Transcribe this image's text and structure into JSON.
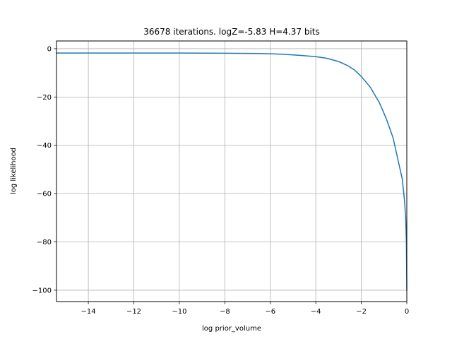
{
  "chart_data": {
    "type": "line",
    "title": "36678 iterations. logZ=-5.83 H=4.37 bits",
    "xlabel": "log prior_volume",
    "ylabel": "log likelihood",
    "xlim": [
      -15.4,
      0
    ],
    "ylim": [
      -104.7,
      3.2
    ],
    "grid": true,
    "xticks": [
      -14,
      -12,
      -10,
      -8,
      -6,
      -4,
      -2,
      0
    ],
    "xtick_labels": [
      "−14",
      "−12",
      "−10",
      "−8",
      "−6",
      "−4",
      "−2",
      "0"
    ],
    "yticks": [
      0,
      -20,
      -40,
      -60,
      -80,
      -100
    ],
    "ytick_labels": [
      "0",
      "−20",
      "−40",
      "−60",
      "−80",
      "−100"
    ],
    "series": [
      {
        "color": "#1f77b4",
        "x": [
          -15.4,
          -14,
          -12,
          -10,
          -8,
          -6.5,
          -6,
          -5.5,
          -5,
          -4.5,
          -4,
          -3.5,
          -3,
          -2.6,
          -2.3,
          -2,
          -1.6,
          -1.2,
          -0.9,
          -0.6,
          -0.4,
          -0.2,
          -0.1,
          -0.05,
          -0.02,
          0
        ],
        "y": [
          -1.8,
          -1.8,
          -1.8,
          -1.8,
          -1.9,
          -2.0,
          -2.1,
          -2.3,
          -2.6,
          -2.9,
          -3.3,
          -4.0,
          -5.3,
          -7.0,
          -8.8,
          -11.5,
          -16.0,
          -22.5,
          -29.0,
          -37.0,
          -45.5,
          -54.0,
          -63.0,
          -70.0,
          -80.0,
          -100.0
        ]
      }
    ]
  }
}
